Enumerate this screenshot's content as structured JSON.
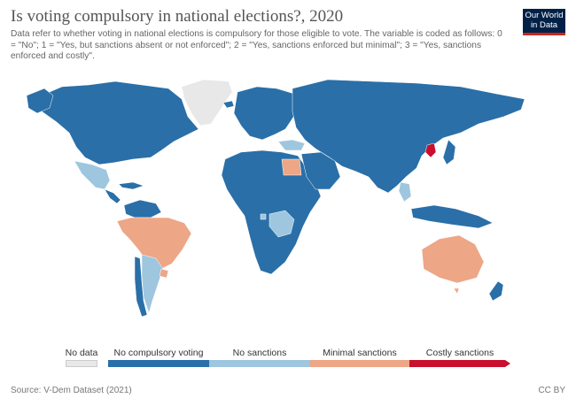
{
  "header": {
    "title": "Is voting compulsory in national elections?, 2020",
    "subtitle": "Data refer to whether voting in national elections is compulsory for those eligible to vote. The variable is coded as follows: 0 = \"No\"; 1 = \"Yes, but sanctions absent or not enforced\"; 2 = \"Yes, sanctions enforced but minimal\"; 3 = \"Yes, sanctions enforced and costly\"."
  },
  "logo": {
    "line1": "Our World",
    "line2": "in Data"
  },
  "colors": {
    "no_data": "#e8e8e8",
    "no_compulsory": "#2a6fa8",
    "no_sanctions": "#9ec6df",
    "minimal_sanctions": "#eda686",
    "costly_sanctions": "#c8102e"
  },
  "legend": {
    "no_data": "No data",
    "no_compulsory": "No compulsory voting",
    "no_sanctions": "No sanctions",
    "minimal_sanctions": "Minimal sanctions",
    "costly_sanctions": "Costly sanctions"
  },
  "footer": {
    "source": "Source: V-Dem Dataset (2021)",
    "license": "CC BY"
  }
}
